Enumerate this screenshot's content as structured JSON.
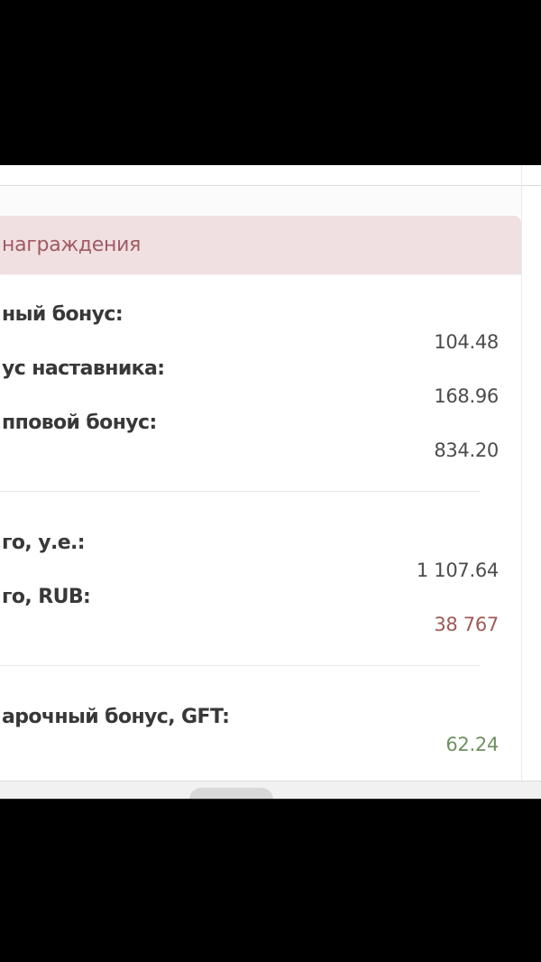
{
  "panel": {
    "header_label": "награждения"
  },
  "colors": {
    "header_bg": "#f0e0e1",
    "header_text": "#a15b63",
    "label_text": "#383838",
    "value_default": "#4c4c4c",
    "value_maroon": "#9e5a55",
    "value_green": "#6f9161"
  },
  "sections": [
    {
      "rows": [
        {
          "label": "ный бонус:",
          "value": "104.48",
          "color": "default"
        },
        {
          "label": "ус наставника:",
          "value": "168.96",
          "color": "default"
        },
        {
          "label": "пповой бонус:",
          "value": "834.20",
          "color": "default"
        }
      ]
    },
    {
      "rows": [
        {
          "label": "го, у.е.:",
          "value": "1 107.64",
          "color": "default"
        },
        {
          "label": "го, RUB:",
          "value": "38 767",
          "color": "maroon"
        }
      ]
    },
    {
      "rows": [
        {
          "label": "арочный бонус, GFT:",
          "value": "62.24",
          "color": "green"
        }
      ]
    }
  ]
}
